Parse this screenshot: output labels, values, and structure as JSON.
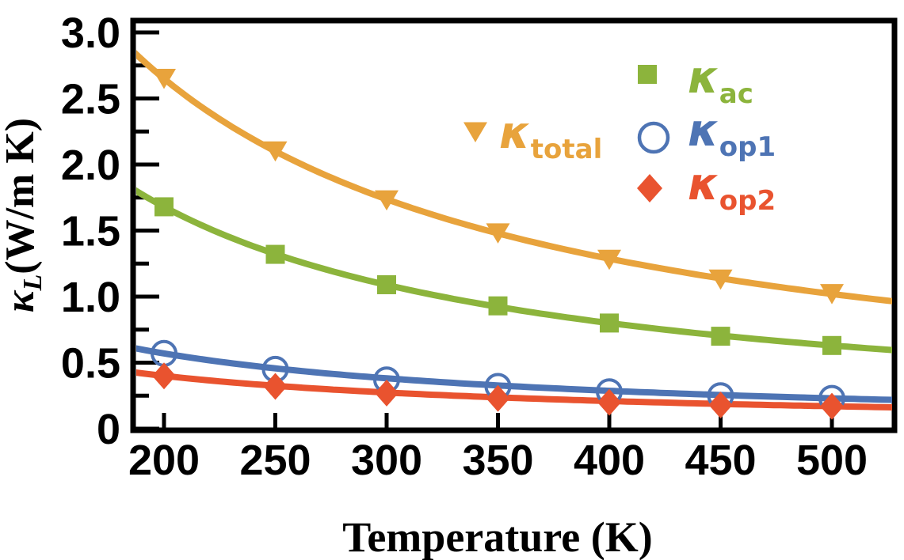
{
  "figure": {
    "background": "#FFFFFF",
    "axis_color": "#000000",
    "tick_label_color": "#000000"
  },
  "chart_data": {
    "type": "line",
    "title": "",
    "xlabel": "Temperature (K)",
    "ylabel": {
      "symbol": "κ",
      "sub": "L",
      "units": "(W/m K)"
    },
    "x": [
      200,
      250,
      300,
      350,
      400,
      450,
      500
    ],
    "x_tick_labels": [
      "200",
      "250",
      "300",
      "350",
      "400",
      "450",
      "500"
    ],
    "y_major_ticks": [
      0,
      0.5,
      1.0,
      1.5,
      2.0,
      2.5,
      3.0
    ],
    "y_tick_labels": [
      "0",
      "0.5",
      "1.0",
      "1.5",
      "2.0",
      "2.5",
      "3.0"
    ],
    "y_minor_step": 0.25,
    "xlim": [
      186,
      528
    ],
    "ylim": [
      0,
      3.09
    ],
    "grid": false,
    "legend_position": "upper-right-inside",
    "series": [
      {
        "name": "kappa_total",
        "symbol": "κ",
        "subscript": "total",
        "marker": "triangle-down",
        "color": "#E8A33C",
        "values": [
          2.65,
          2.1,
          1.73,
          1.48,
          1.28,
          1.13,
          1.02
        ]
      },
      {
        "name": "kappa_ac",
        "symbol": "κ",
        "subscript": "ac",
        "marker": "square",
        "color": "#8CB43C",
        "values": [
          1.68,
          1.32,
          1.09,
          0.93,
          0.8,
          0.7,
          0.63
        ]
      },
      {
        "name": "kappa_op1",
        "symbol": "κ",
        "subscript": "op1",
        "marker": "open-circle",
        "color": "#4E74B4",
        "values": [
          0.57,
          0.45,
          0.37,
          0.32,
          0.28,
          0.25,
          0.23
        ]
      },
      {
        "name": "kappa_op2",
        "symbol": "κ",
        "subscript": "op2",
        "marker": "diamond",
        "color": "#E9532F",
        "values": [
          0.4,
          0.32,
          0.27,
          0.23,
          0.2,
          0.18,
          0.17
        ]
      }
    ]
  }
}
